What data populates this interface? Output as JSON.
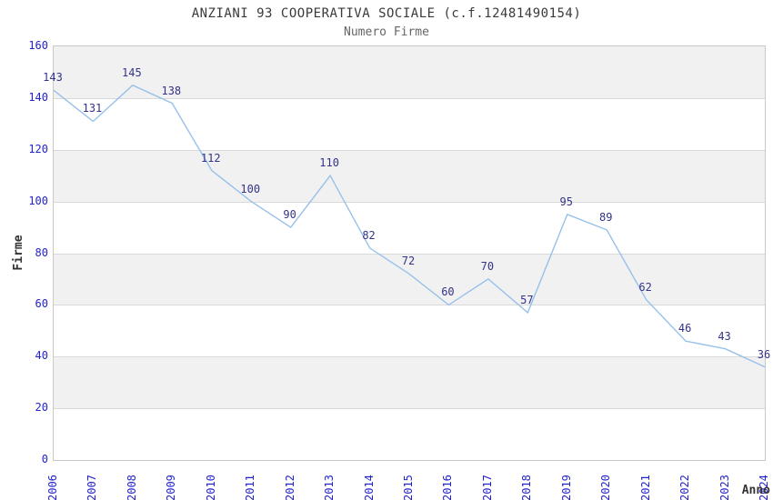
{
  "chart": {
    "title": "ANZIANI 93 COOPERATIVA SOCIALE (c.f.12481490154)",
    "subtitle": "Numero Firme",
    "ylabel": "Firme",
    "xlabel": "Anno"
  },
  "chart_data": {
    "type": "line",
    "title": "ANZIANI 93 COOPERATIVA SOCIALE (c.f.12481490154)",
    "subtitle": "Numero Firme",
    "xlabel": "Anno",
    "ylabel": "Firme",
    "categories": [
      "2006",
      "2007",
      "2008",
      "2009",
      "2010",
      "2011",
      "2012",
      "2013",
      "2014",
      "2015",
      "2016",
      "2017",
      "2018",
      "2019",
      "2020",
      "2021",
      "2022",
      "2023",
      "2024"
    ],
    "values": [
      143,
      131,
      145,
      138,
      112,
      100,
      90,
      110,
      82,
      72,
      60,
      70,
      57,
      95,
      89,
      62,
      46,
      43,
      36
    ],
    "ylim": [
      0,
      160
    ],
    "ytick_interval": 20,
    "yticks": [
      0,
      20,
      40,
      60,
      80,
      100,
      120,
      140,
      160
    ],
    "grid": "horizontal-alternating-bands",
    "legend": "none",
    "data_labels": true,
    "colors": {
      "line": "#97c1ea",
      "tick_label": "#2323cc",
      "data_label": "#333388",
      "band_shade": "#f1f1f1",
      "band_plain": "#ffffff",
      "gridline": "#d9d9d9",
      "plot_border": "#c9c9c9",
      "title": "#3a3a3a",
      "subtitle": "#666666",
      "axis_title": "#333333",
      "background": "#ffffff"
    }
  }
}
